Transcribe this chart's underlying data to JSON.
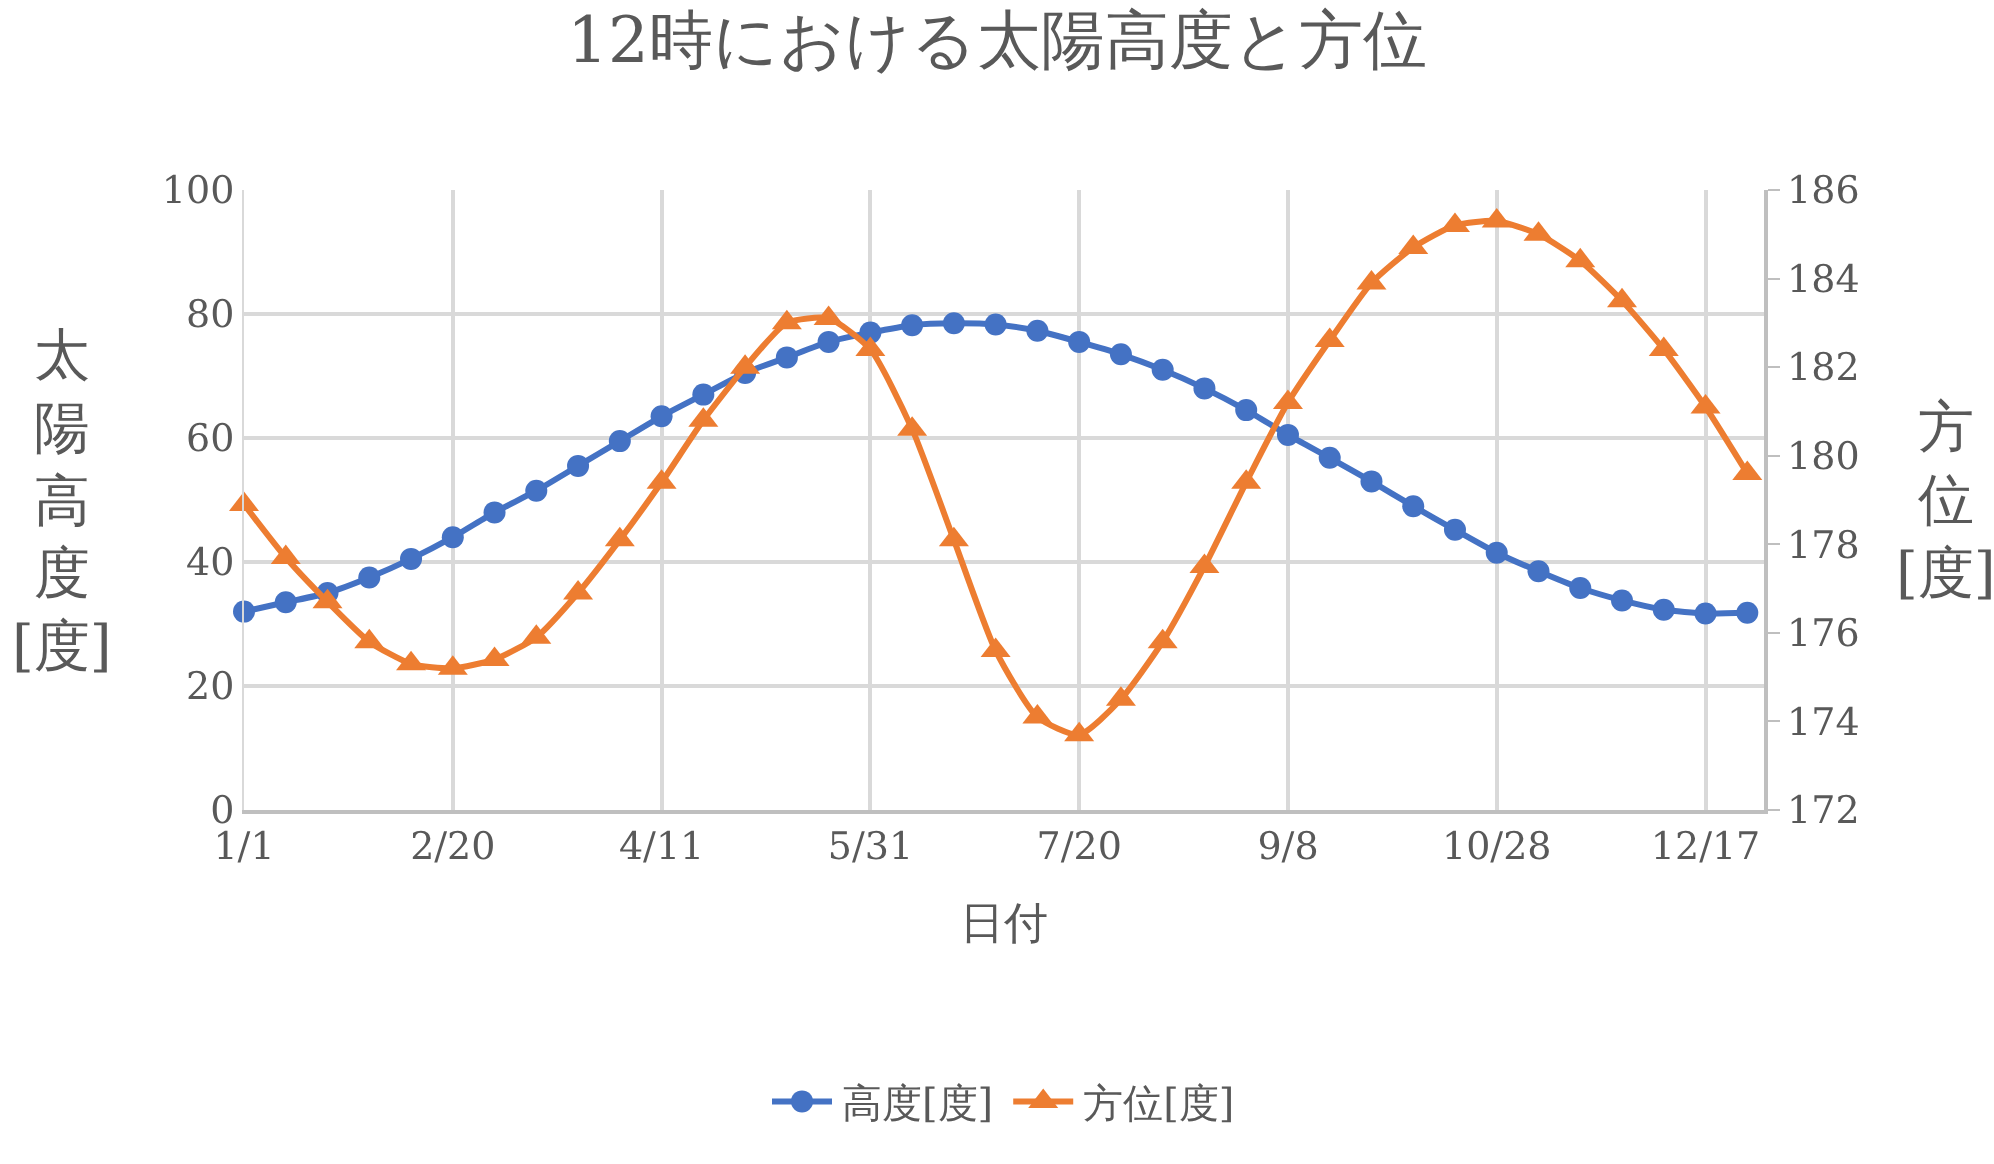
{
  "chart_data": {
    "type": "line",
    "title": "12時における太陽高度と方位",
    "xlabel": "日付",
    "ylabel": "太陽高度[度]",
    "y2label": "方位[度]",
    "x": [
      "--01-01",
      "--01-11",
      "--01-21",
      "--01-31",
      "--02-10",
      "--02-20",
      "--03-02",
      "--03-12",
      "--03-22",
      "--04-01",
      "--04-11",
      "--04-21",
      "--05-01",
      "--05-11",
      "--05-21",
      "--05-31",
      "--06-10",
      "--06-20",
      "--06-30",
      "--07-10",
      "--07-20",
      "--07-30",
      "--08-09",
      "--08-19",
      "--08-29",
      "--09-08",
      "--09-18",
      "--09-28",
      "--10-08",
      "--10-18",
      "--10-28",
      "--11-07",
      "--11-17",
      "--11-27",
      "--12-07",
      "--12-17",
      "--12-27"
    ],
    "series": [
      {
        "name": "高度[度]",
        "color": "#4472c4",
        "marker": "circle",
        "values": [
          32,
          33.5,
          35,
          37.5,
          40.5,
          44,
          48,
          51.5,
          55.5,
          59.5,
          63.5,
          67,
          70.5,
          73,
          75.5,
          77,
          78.2,
          78.5,
          78.3,
          77.3,
          75.5,
          73.5,
          71,
          68,
          64.5,
          60.5,
          56.8,
          53,
          49,
          45.2,
          41.5,
          38.5,
          35.8,
          33.8,
          32.3,
          31.7,
          31.8
        ]
      },
      {
        "name": "方位[度]",
        "color": "#ed7d31",
        "marker": "triangle",
        "axis": "y2",
        "values": [
          178.9,
          177.7,
          176.7,
          175.8,
          175.3,
          175.2,
          175.4,
          175.9,
          176.9,
          178.1,
          179.4,
          180.8,
          182.0,
          183.0,
          183.1,
          182.4,
          180.6,
          178.1,
          175.6,
          174.1,
          173.7,
          174.5,
          175.8,
          177.5,
          179.4,
          181.2,
          182.6,
          183.9,
          184.7,
          185.2,
          185.3,
          185.0,
          184.4,
          183.5,
          182.4,
          181.1,
          179.6
        ]
      }
    ],
    "xlim": [
      "--01-01",
      "--12-31"
    ],
    "xticks": [
      {
        "value": "--01-01",
        "label": "1/1"
      },
      {
        "value": "--02-20",
        "label": "2/20"
      },
      {
        "value": "--04-11",
        "label": "4/11"
      },
      {
        "value": "--05-31",
        "label": "5/31"
      },
      {
        "value": "--07-20",
        "label": "7/20"
      },
      {
        "value": "--09-08",
        "label": "9/8"
      },
      {
        "value": "--10-28",
        "label": "10/28"
      },
      {
        "value": "--12-17",
        "label": "12/17"
      }
    ],
    "ylim": [
      0,
      100
    ],
    "yticks": [
      0,
      20,
      40,
      60,
      80,
      100
    ],
    "y2lim": [
      172,
      186
    ],
    "y2ticks": [
      172,
      174,
      176,
      178,
      180,
      182,
      184,
      186
    ],
    "grid": true,
    "legend": "bottom",
    "line_style": "solid"
  }
}
